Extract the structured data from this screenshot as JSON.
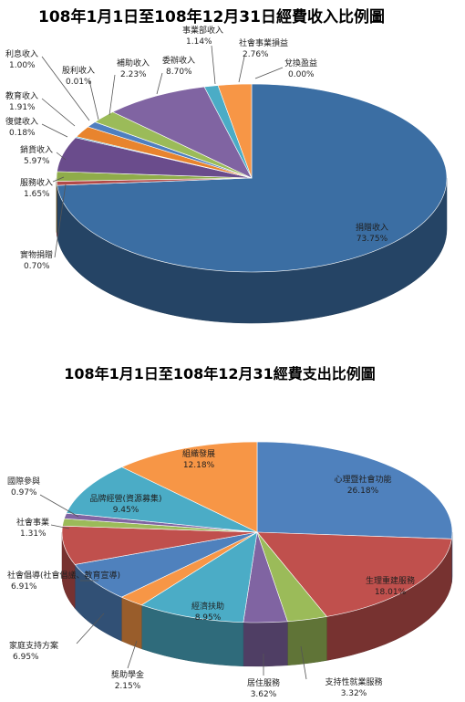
{
  "chart_data": [
    {
      "type": "pie",
      "title": "108年1月1日至108年12月31日經費收入比例圖",
      "slices": [
        {
          "label": "捐贈收入",
          "value": 73.75,
          "display": "73.75%",
          "color": "#3b6ea3"
        },
        {
          "label": "實物捐贈",
          "value": 0.7,
          "display": "0.70%",
          "color": "#b34a48"
        },
        {
          "label": "服務收入",
          "value": 1.65,
          "display": "1.65%",
          "color": "#8fac4a"
        },
        {
          "label": "銷貨收入",
          "value": 5.97,
          "display": "5.97%",
          "color": "#6a4c8c"
        },
        {
          "label": "復健收入",
          "value": 0.18,
          "display": "0.18%",
          "color": "#3aa2bf"
        },
        {
          "label": "教育收入",
          "value": 1.91,
          "display": "1.91%",
          "color": "#e8842e"
        },
        {
          "label": "利息收入",
          "value": 1.0,
          "display": "1.00%",
          "color": "#4f7fc0"
        },
        {
          "label": "股利收入",
          "value": 0.01,
          "display": "0.01%",
          "color": "#c0504d"
        },
        {
          "label": "補助收入",
          "value": 2.23,
          "display": "2.23%",
          "color": "#9bbb59"
        },
        {
          "label": "委辦收入",
          "value": 8.7,
          "display": "8.70%",
          "color": "#8064a2"
        },
        {
          "label": "事業部收入",
          "value": 1.14,
          "display": "1.14%",
          "color": "#4bacc6"
        },
        {
          "label": "社會事業損益",
          "value": 2.76,
          "display": "2.76%",
          "color": "#f79646"
        },
        {
          "label": "兌換盈益",
          "value": 0.0,
          "display": "0.00%",
          "color": "#2c4d75"
        }
      ]
    },
    {
      "type": "pie",
      "title": "108年1月1日至108年12月31經費支出比例圖",
      "slices": [
        {
          "label": "心理暨社會功能",
          "value": 26.18,
          "display": "26.18%",
          "color": "#4f81bd"
        },
        {
          "label": "生理重建服務",
          "value": 18.01,
          "display": "18.01%",
          "color": "#c0504d"
        },
        {
          "label": "支持性就業服務",
          "value": 3.32,
          "display": "3.32%",
          "color": "#9bbb59"
        },
        {
          "label": "居住服務",
          "value": 3.62,
          "display": "3.62%",
          "color": "#8064a2"
        },
        {
          "label": "經濟扶助",
          "value": 8.95,
          "display": "8.95%",
          "color": "#4bacc6"
        },
        {
          "label": "獎助學金",
          "value": 2.15,
          "display": "2.15%",
          "color": "#f79646"
        },
        {
          "label": "家庭支持方案",
          "value": 6.95,
          "display": "6.95%",
          "color": "#4f81bd"
        },
        {
          "label": "社會倡導(社會倡議、教育宣導)",
          "value": 6.91,
          "display": "6.91%",
          "color": "#c0504d"
        },
        {
          "label": "社會事業",
          "value": 1.31,
          "display": "1.31%",
          "color": "#9bbb59"
        },
        {
          "label": "國際參與",
          "value": 0.97,
          "display": "0.97%",
          "color": "#8064a2"
        },
        {
          "label": "品牌經營(資源募集)",
          "value": 9.45,
          "display": "9.45%",
          "color": "#4bacc6"
        },
        {
          "label": "組織發展",
          "value": 12.18,
          "display": "12.18%",
          "color": "#f79646"
        }
      ]
    }
  ]
}
